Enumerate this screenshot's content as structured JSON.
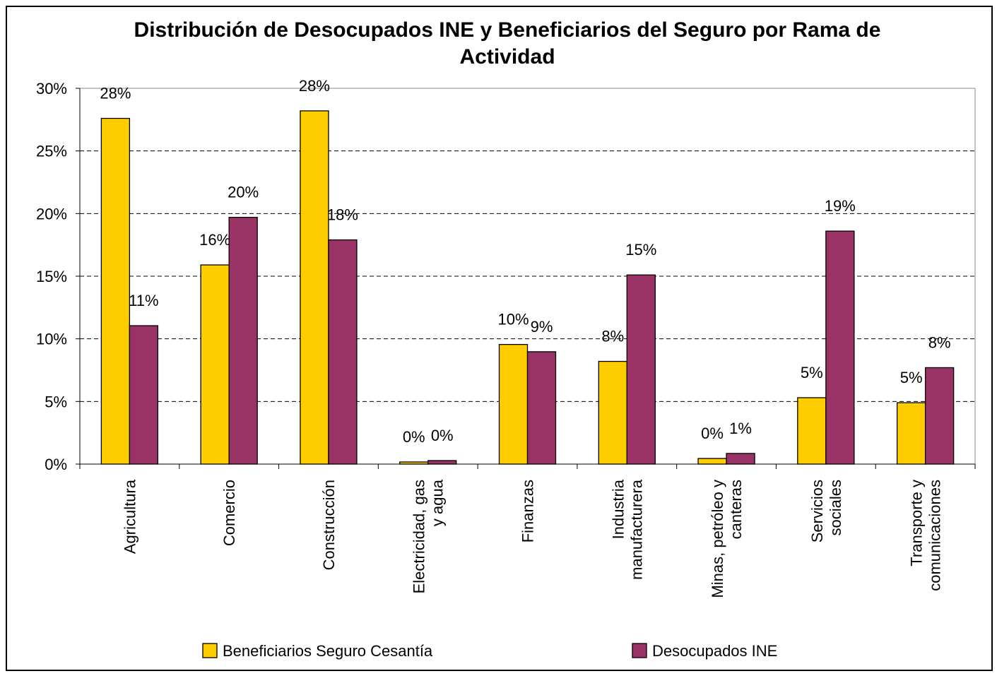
{
  "chart_data": {
    "type": "bar",
    "title": "Distribución de Desocupados INE y Beneficiarios del Seguro por Rama de Actividad",
    "categories": [
      "Agricultura",
      "Comercio",
      "Construcción",
      "Electricidad, gas y agua",
      "Finanzas",
      "Industria manufacturera",
      "Minas, petróleo y canteras",
      "Servicios sociales",
      "Transporte y comunicaciones"
    ],
    "series": [
      {
        "name": "Beneficiarios Seguro Cesantía",
        "color": "#ffcc00",
        "values": [
          27.6,
          15.9,
          28.2,
          0.17,
          9.55,
          8.2,
          0.45,
          5.3,
          4.9
        ],
        "value_labels": [
          "28%",
          "16%",
          "28%",
          "0%",
          "10%",
          "8%",
          "0%",
          "5%",
          "5%"
        ]
      },
      {
        "name": "Desocupados INE",
        "color": "#993366",
        "values": [
          11.05,
          19.7,
          17.9,
          0.28,
          8.97,
          15.1,
          0.85,
          18.6,
          7.7
        ],
        "value_labels": [
          "11%",
          "20%",
          "18%",
          "0%",
          "9%",
          "15%",
          "1%",
          "19%",
          "8%"
        ]
      }
    ],
    "ylim": [
      0,
      30
    ],
    "yticks": [
      {
        "value": 0,
        "label": "0%"
      },
      {
        "value": 5,
        "label": "5%"
      },
      {
        "value": 10,
        "label": "10%"
      },
      {
        "value": 15,
        "label": "15%"
      },
      {
        "value": 20,
        "label": "20%"
      },
      {
        "value": 25,
        "label": "25%"
      },
      {
        "value": 30,
        "label": "30%"
      }
    ],
    "grid": true,
    "legend": "bottom"
  }
}
